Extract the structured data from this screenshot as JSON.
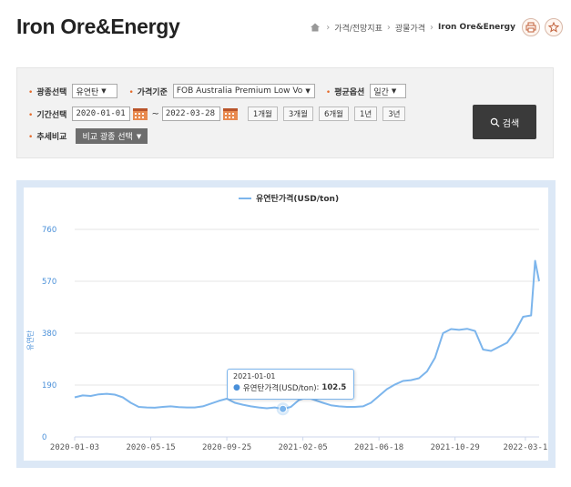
{
  "header": {
    "title": "Iron Ore&Energy",
    "breadcrumb": [
      "가격/전망지표",
      "광물가격",
      "Iron Ore&Energy"
    ]
  },
  "filters": {
    "mineral_label": "광종선택",
    "mineral_value": "유연탄",
    "price_basis_label": "가격기준",
    "price_basis_value": "FOB Australia Premium Low Vo",
    "avg_option_label": "평균옵션",
    "avg_option_value": "일간",
    "period_label": "기간선택",
    "date_from": "2020-01-01",
    "date_to": "2022-03-28",
    "period_buttons": [
      "1개월",
      "3개월",
      "6개월",
      "1년",
      "3년"
    ],
    "compare_label": "추세비교",
    "compare_button": "비교 광종 선택",
    "search_button": "검색"
  },
  "chart_data": {
    "type": "line",
    "legend": "유연탄가격(USD/ton)",
    "ylabel": "유연탄",
    "ylim": [
      0,
      760
    ],
    "yticks": [
      "760",
      "570",
      "380",
      "190",
      "0"
    ],
    "xticks": [
      "2020-01-03",
      "2020-05-15",
      "2020-09-25",
      "2021-02-05",
      "2021-06-18",
      "2021-10-29",
      "2022-03-1"
    ],
    "series": [
      {
        "name": "유연탄가격(USD/ton)",
        "color": "#7cb5ec",
        "x": [
          "2020-01-03",
          "2020-01-17",
          "2020-01-31",
          "2020-02-14",
          "2020-02-28",
          "2020-03-13",
          "2020-03-27",
          "2020-04-10",
          "2020-04-24",
          "2020-05-08",
          "2020-05-22",
          "2020-06-05",
          "2020-06-19",
          "2020-07-03",
          "2020-07-17",
          "2020-07-31",
          "2020-08-14",
          "2020-08-28",
          "2020-09-11",
          "2020-09-25",
          "2020-10-09",
          "2020-10-23",
          "2020-11-06",
          "2020-11-20",
          "2020-12-04",
          "2020-12-18",
          "2021-01-01",
          "2021-01-15",
          "2021-01-29",
          "2021-02-12",
          "2021-02-26",
          "2021-03-12",
          "2021-03-26",
          "2021-04-09",
          "2021-04-23",
          "2021-05-07",
          "2021-05-21",
          "2021-06-04",
          "2021-06-18",
          "2021-07-02",
          "2021-07-16",
          "2021-07-30",
          "2021-08-13",
          "2021-08-27",
          "2021-09-10",
          "2021-09-24",
          "2021-10-08",
          "2021-10-22",
          "2021-11-05",
          "2021-11-19",
          "2021-12-03",
          "2021-12-17",
          "2021-12-31",
          "2022-01-14",
          "2022-01-28",
          "2022-02-11",
          "2022-02-25",
          "2022-03-11",
          "2022-03-18",
          "2022-03-25"
        ],
        "values": [
          145,
          152,
          150,
          156,
          158,
          155,
          145,
          125,
          110,
          108,
          107,
          110,
          112,
          109,
          108,
          108,
          112,
          122,
          132,
          140,
          125,
          118,
          112,
          108,
          105,
          108,
          102.5,
          110,
          135,
          145,
          135,
          125,
          116,
          112,
          110,
          110,
          112,
          125,
          150,
          175,
          192,
          205,
          208,
          215,
          240,
          290,
          380,
          395,
          392,
          396,
          388,
          320,
          315,
          330,
          345,
          385,
          440,
          445,
          645,
          570
        ]
      }
    ],
    "tooltip": {
      "date": "2021-01-01",
      "label": "유연탄가격(USD/ton)",
      "value": "102.5"
    },
    "grid": true,
    "legend_position": "top"
  }
}
